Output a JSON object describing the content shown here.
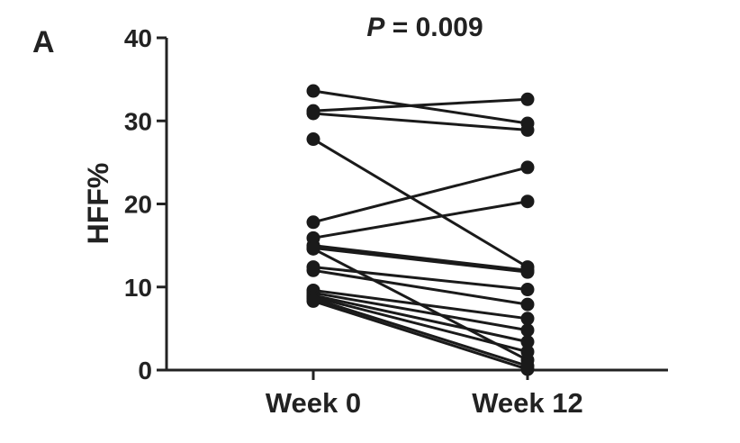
{
  "panel_label": "A",
  "pvalue": {
    "prefix": "P",
    "rest": " = 0.009"
  },
  "chart_data": {
    "type": "line",
    "title": "P = 0.009",
    "ylabel": "HFF%",
    "xlabel": "",
    "categories": [
      "Week 0",
      "Week 12"
    ],
    "ylim": [
      0,
      40
    ],
    "yticks": [
      0,
      10,
      20,
      30,
      40
    ],
    "yticklabels": [
      "0",
      "10",
      "20",
      "30",
      "40"
    ],
    "grid": false,
    "legend": "none",
    "color": "#1a1a1a",
    "pairs": [
      {
        "week0": 33.6,
        "week12": 29.7
      },
      {
        "week0": 31.2,
        "week12": 32.6
      },
      {
        "week0": 30.9,
        "week12": 28.9
      },
      {
        "week0": 27.8,
        "week12": 12.4
      },
      {
        "week0": 17.8,
        "week12": 24.4
      },
      {
        "week0": 15.9,
        "week12": 20.3
      },
      {
        "week0": 15.0,
        "week12": 12.0
      },
      {
        "week0": 14.7,
        "week12": 11.8
      },
      {
        "week0": 14.6,
        "week12": 1.2
      },
      {
        "week0": 12.4,
        "week12": 9.7
      },
      {
        "week0": 12.0,
        "week12": 7.9
      },
      {
        "week0": 9.6,
        "week12": 6.2
      },
      {
        "week0": 9.3,
        "week12": 4.8
      },
      {
        "week0": 9.0,
        "week12": 3.4
      },
      {
        "week0": 8.8,
        "week12": 2.2
      },
      {
        "week0": 8.6,
        "week12": 0.5
      },
      {
        "week0": 8.3,
        "week12": 0.1
      }
    ]
  }
}
